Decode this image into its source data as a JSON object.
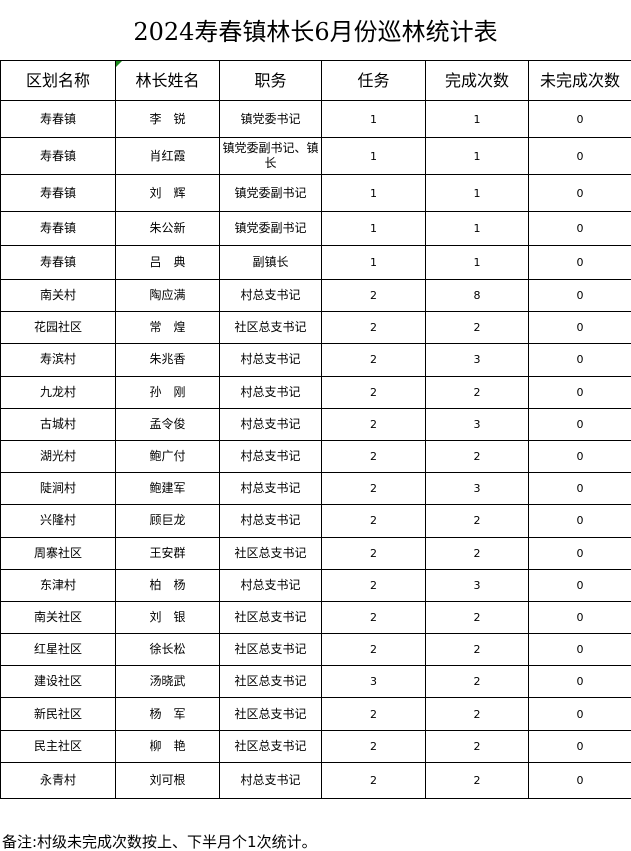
{
  "title": "2024寿春镇林长6月份巡林统计表",
  "columns": [
    "区划名称",
    "林长姓名",
    "职务",
    "任务",
    "完成次数",
    "未完成次数"
  ],
  "rows": [
    [
      "寿春镇",
      "李　锐",
      "镇党委书记",
      "1",
      "1",
      "0"
    ],
    [
      "寿春镇",
      "肖红霞",
      "镇党委副书记、镇长",
      "1",
      "1",
      "0"
    ],
    [
      "寿春镇",
      "刘　辉",
      "镇党委副书记",
      "1",
      "1",
      "0"
    ],
    [
      "寿春镇",
      "朱公新",
      "镇党委副书记",
      "1",
      "1",
      "0"
    ],
    [
      "寿春镇",
      "吕　典",
      "副镇长",
      "1",
      "1",
      "0"
    ],
    [
      "南关村",
      "陶应满",
      "村总支书记",
      "2",
      "8",
      "0"
    ],
    [
      "花园社区",
      "常　煌",
      "社区总支书记",
      "2",
      "2",
      "0"
    ],
    [
      "寿滨村",
      "朱兆香",
      "村总支书记",
      "2",
      "3",
      "0"
    ],
    [
      "九龙村",
      "孙　刚",
      "村总支书记",
      "2",
      "2",
      "0"
    ],
    [
      "古城村",
      "孟令俊",
      "村总支书记",
      "2",
      "3",
      "0"
    ],
    [
      "湖光村",
      "鲍广付",
      "村总支书记",
      "2",
      "2",
      "0"
    ],
    [
      "陡涧村",
      "鲍建军",
      "村总支书记",
      "2",
      "3",
      "0"
    ],
    [
      "兴隆村",
      "顾巨龙",
      "村总支书记",
      "2",
      "2",
      "0"
    ],
    [
      "周寨社区",
      "王安群",
      "社区总支书记",
      "2",
      "2",
      "0"
    ],
    [
      "东津村",
      "柏　杨",
      "村总支书记",
      "2",
      "3",
      "0"
    ],
    [
      "南关社区",
      "刘　银",
      "社区总支书记",
      "2",
      "2",
      "0"
    ],
    [
      "红星社区",
      "徐长松",
      "社区总支书记",
      "2",
      "2",
      "0"
    ],
    [
      "建设社区",
      "汤晓武",
      "社区总支书记",
      "3",
      "2",
      "0"
    ],
    [
      "新民社区",
      "杨　军",
      "社区总支书记",
      "2",
      "2",
      "0"
    ],
    [
      "民主社区",
      "柳　艳",
      "社区总支书记",
      "2",
      "2",
      "0"
    ],
    [
      "永青村",
      "刘可根",
      "村总支书记",
      "2",
      "2",
      "0"
    ]
  ],
  "note": "备注:村级未完成次数按上、下半月个1次统计。"
}
